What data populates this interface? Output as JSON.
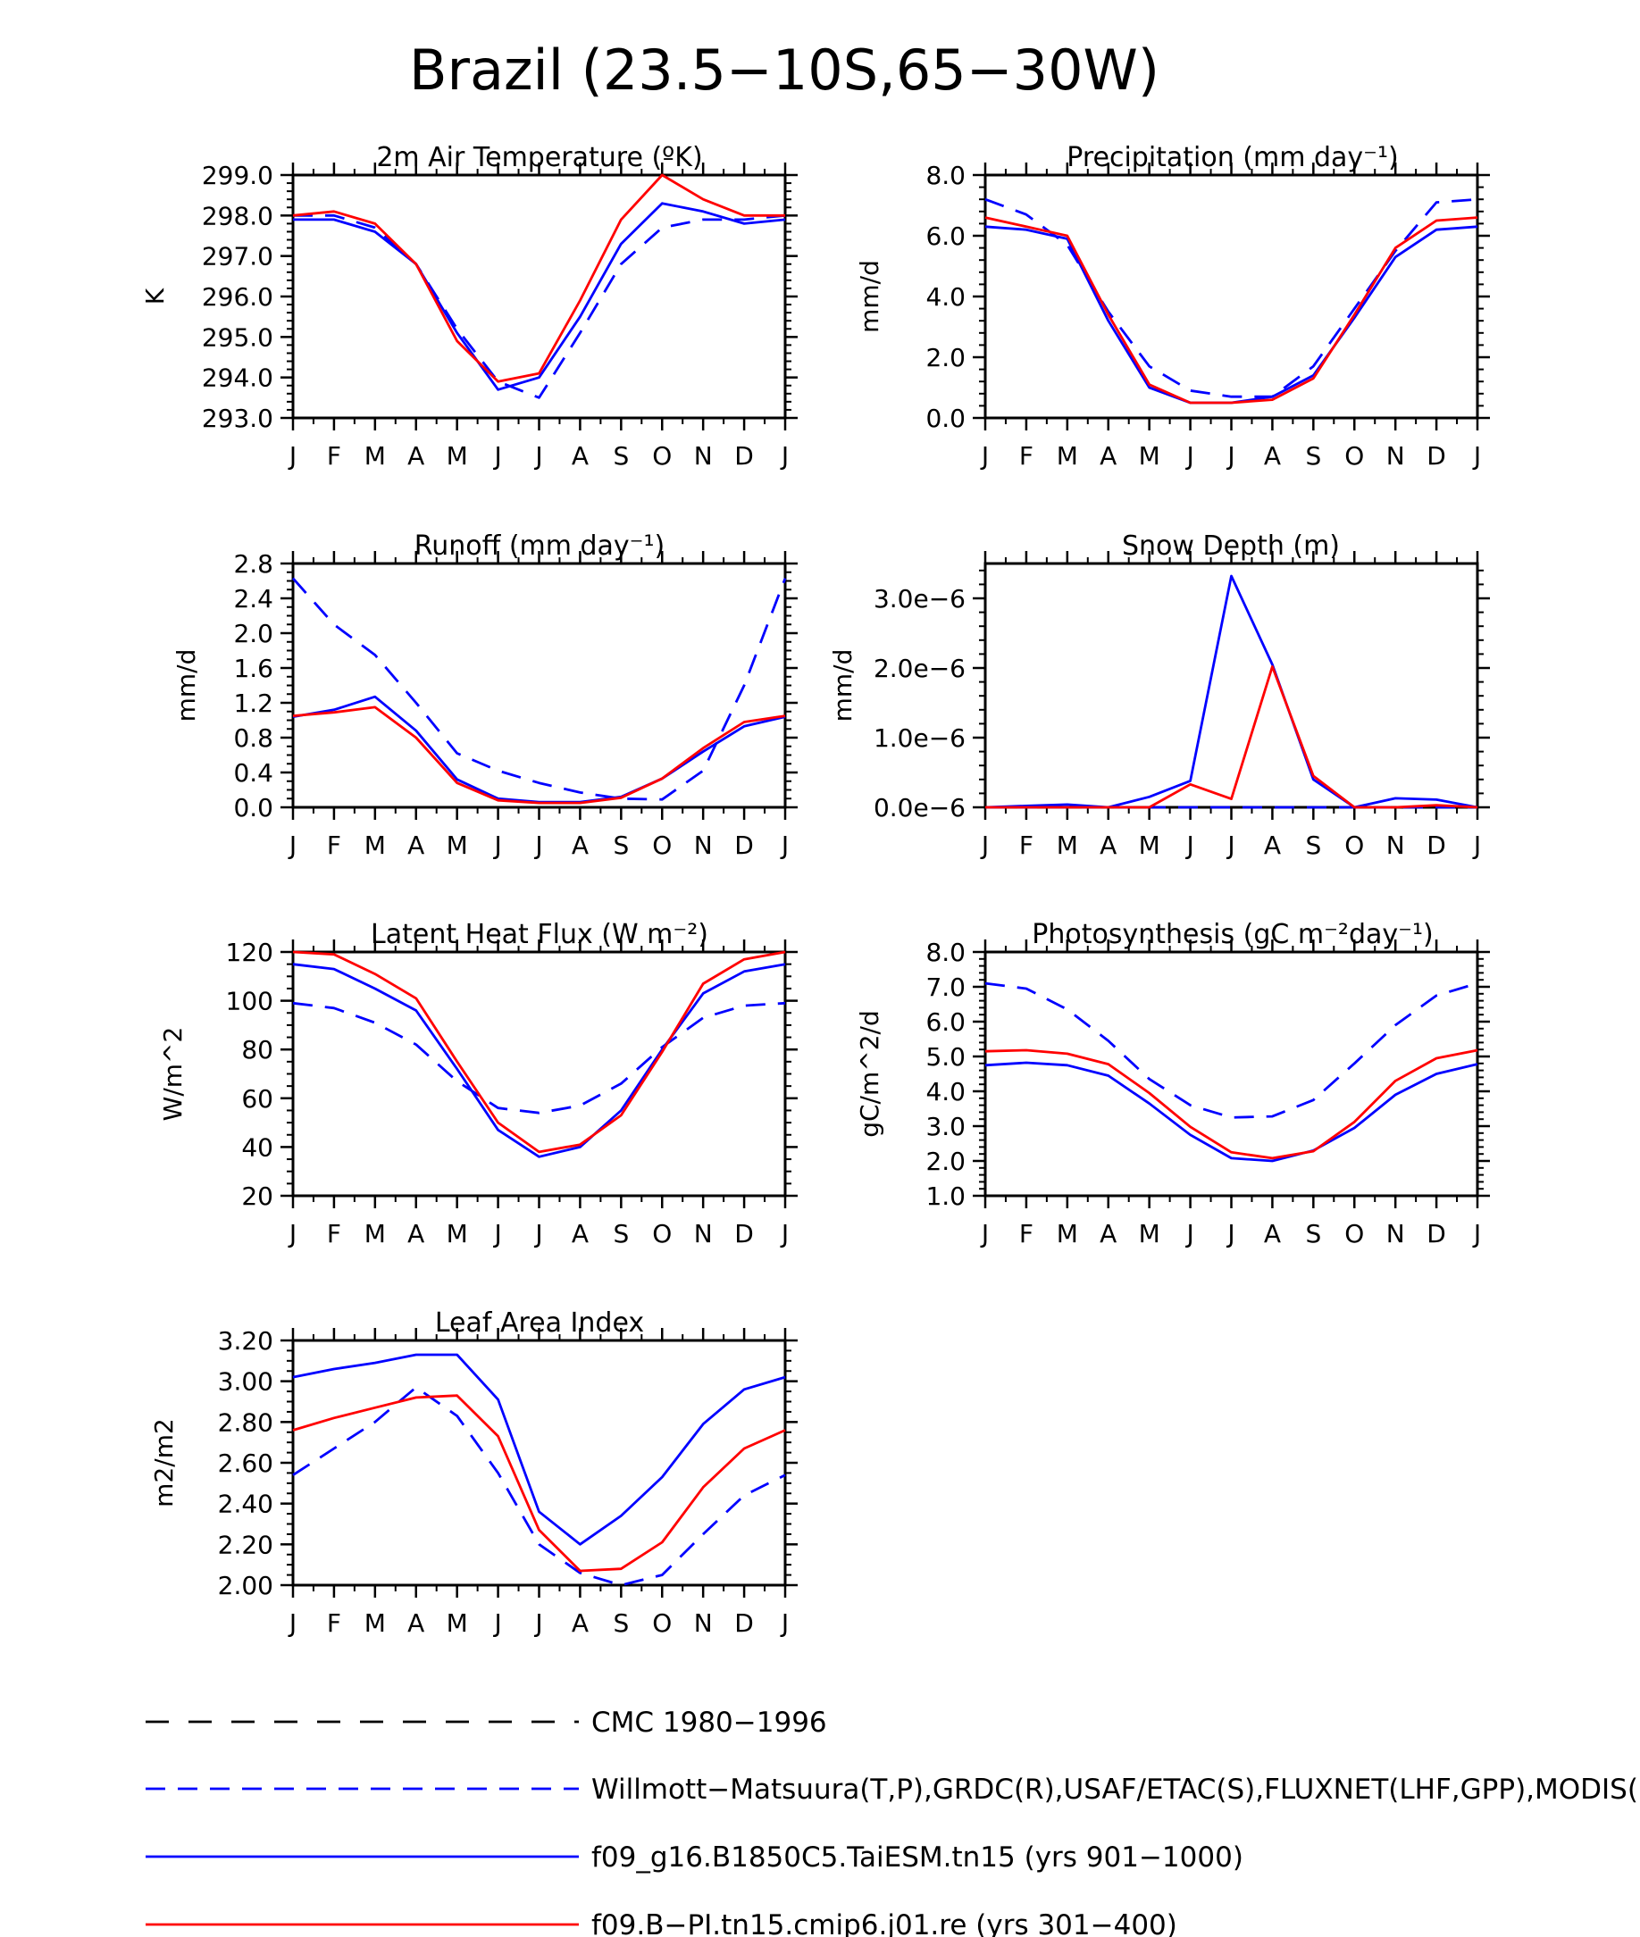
{
  "figure": {
    "title": "Brazil (23.5−10S,65−30W)"
  },
  "months": [
    "J",
    "F",
    "M",
    "A",
    "M",
    "J",
    "J",
    "A",
    "S",
    "O",
    "N",
    "D",
    "J"
  ],
  "series_styles": [
    {
      "key": "cmc",
      "color": "#000000",
      "dash": "long"
    },
    {
      "key": "obs",
      "color": "#0000ff",
      "dash": "dashed"
    },
    {
      "key": "taiesm",
      "color": "#0000ff",
      "dash": "solid"
    },
    {
      "key": "cmip6",
      "color": "#ff0000",
      "dash": "solid"
    }
  ],
  "legend": [
    {
      "key": "cmc",
      "label": "CMC 1980−1996"
    },
    {
      "key": "obs",
      "label": "Willmott−Matsuura(T,P),GRDC(R),USAF/ETAC(S),FLUXNET(LHF,GPP),MODIS(L"
    },
    {
      "key": "taiesm",
      "label": "f09_g16.B1850C5.TaiESM.tn15 (yrs 901−1000)"
    },
    {
      "key": "cmip6",
      "label": "f09.B−PI.tn15.cmip6.j01.re (yrs 301−400)"
    }
  ],
  "chart_data": [
    {
      "type": "line",
      "title": "2m Air Temperature (ºK)",
      "ylabel": "K",
      "ylim": [
        293.0,
        299.0
      ],
      "yticks": [
        293.0,
        294.0,
        295.0,
        296.0,
        297.0,
        298.0,
        299.0
      ],
      "ytick_labels": [
        "293.0",
        "294.0",
        "295.0",
        "296.0",
        "297.0",
        "298.0",
        "299.0"
      ],
      "minor_per": 5,
      "series": [
        {
          "key": "obs",
          "values": [
            298.0,
            298.0,
            297.7,
            296.8,
            295.2,
            293.9,
            293.5,
            295.1,
            296.8,
            297.7,
            297.9,
            297.9,
            298.0
          ]
        },
        {
          "key": "taiesm",
          "values": [
            297.9,
            297.9,
            297.6,
            296.8,
            295.1,
            293.7,
            294.0,
            295.5,
            297.3,
            298.3,
            298.1,
            297.8,
            297.9
          ]
        },
        {
          "key": "cmip6",
          "values": [
            298.0,
            298.1,
            297.8,
            296.8,
            294.9,
            293.9,
            294.1,
            295.9,
            297.9,
            299.0,
            298.4,
            298.0,
            298.0
          ]
        }
      ]
    },
    {
      "type": "line",
      "title": "Precipitation (mm day⁻¹)",
      "ylabel": "mm/d",
      "ylim": [
        0.0,
        8.0
      ],
      "yticks": [
        0.0,
        2.0,
        4.0,
        6.0,
        8.0
      ],
      "ytick_labels": [
        "0.0",
        "2.0",
        "4.0",
        "6.0",
        "8.0"
      ],
      "minor_per": 5,
      "series": [
        {
          "key": "obs",
          "values": [
            7.2,
            6.7,
            5.7,
            3.5,
            1.7,
            0.9,
            0.7,
            0.7,
            1.7,
            3.6,
            5.5,
            7.1,
            7.2
          ]
        },
        {
          "key": "taiesm",
          "values": [
            6.3,
            6.2,
            5.9,
            3.2,
            1.0,
            0.5,
            0.5,
            0.7,
            1.4,
            3.3,
            5.3,
            6.2,
            6.3
          ]
        },
        {
          "key": "cmip6",
          "values": [
            6.6,
            6.3,
            6.0,
            3.4,
            1.1,
            0.5,
            0.5,
            0.6,
            1.3,
            3.4,
            5.6,
            6.5,
            6.6
          ]
        }
      ]
    },
    {
      "type": "line",
      "title": "Runoff (mm day⁻¹)",
      "ylabel": "mm/d",
      "ylim": [
        0.0,
        2.8
      ],
      "yticks": [
        0.0,
        0.4,
        0.8,
        1.2,
        1.6,
        2.0,
        2.4,
        2.8
      ],
      "ytick_labels": [
        "0.0",
        "0.4",
        "0.8",
        "1.2",
        "1.6",
        "2.0",
        "2.4",
        "2.8"
      ],
      "minor_per": 4,
      "series": [
        {
          "key": "obs",
          "values": [
            2.63,
            2.1,
            1.75,
            1.2,
            0.62,
            0.42,
            0.28,
            0.17,
            0.1,
            0.09,
            0.42,
            1.4,
            2.63
          ]
        },
        {
          "key": "taiesm",
          "values": [
            1.04,
            1.12,
            1.27,
            0.88,
            0.32,
            0.1,
            0.06,
            0.06,
            0.12,
            0.33,
            0.64,
            0.93,
            1.04
          ]
        },
        {
          "key": "cmip6",
          "values": [
            1.05,
            1.09,
            1.15,
            0.8,
            0.28,
            0.08,
            0.05,
            0.05,
            0.11,
            0.33,
            0.68,
            0.98,
            1.05
          ]
        }
      ]
    },
    {
      "type": "line",
      "title": "Snow Depth (m)",
      "ylabel": "mm/d",
      "ylim": [
        0.0,
        3.5e-06
      ],
      "yticks": [
        0.0,
        1e-06,
        2e-06,
        3e-06
      ],
      "ytick_labels": [
        "0.0e−6",
        "1.0e−6",
        "2.0e−6",
        "3.0e−6"
      ],
      "minor_per": 5,
      "series": [
        {
          "key": "obs",
          "values": [
            0,
            0,
            0,
            0,
            0,
            0,
            0,
            0,
            0,
            0,
            0,
            0,
            0
          ]
        },
        {
          "key": "taiesm",
          "values": [
            0,
            2e-08,
            4e-08,
            0,
            1.5e-07,
            3.8e-07,
            3.32e-06,
            2.05e-06,
            4e-07,
            0,
            1.3e-07,
            1.1e-07,
            0
          ]
        },
        {
          "key": "cmip6",
          "values": [
            0,
            0,
            0,
            0,
            0,
            3.3e-07,
            1.2e-07,
            2.02e-06,
            4.5e-07,
            0,
            0,
            3e-08,
            0
          ]
        }
      ]
    },
    {
      "type": "line",
      "title": "Latent Heat Flux (W m⁻²)",
      "ylabel": "W/m^2",
      "ylim": [
        20,
        120
      ],
      "yticks": [
        20,
        40,
        60,
        80,
        100,
        120
      ],
      "ytick_labels": [
        "20",
        "40",
        "60",
        "80",
        "100",
        "120"
      ],
      "minor_per": 4,
      "series": [
        {
          "key": "obs",
          "values": [
            99,
            97,
            91,
            82,
            67,
            56,
            54,
            57,
            66,
            81,
            93,
            98,
            99
          ]
        },
        {
          "key": "taiesm",
          "values": [
            115,
            113,
            105,
            96,
            72,
            47,
            36,
            40,
            55,
            80,
            103,
            112,
            115
          ]
        },
        {
          "key": "cmip6",
          "values": [
            120,
            119,
            111,
            101,
            75,
            50,
            38,
            41,
            53,
            79,
            107,
            117,
            120
          ]
        }
      ]
    },
    {
      "type": "line",
      "title": "Photosynthesis (gC m⁻²day⁻¹)",
      "ylabel": "gC/m^2/d",
      "ylim": [
        1.0,
        8.0
      ],
      "yticks": [
        1.0,
        2.0,
        3.0,
        4.0,
        5.0,
        6.0,
        7.0,
        8.0
      ],
      "ytick_labels": [
        "1.0",
        "2.0",
        "3.0",
        "4.0",
        "5.0",
        "6.0",
        "7.0",
        "8.0"
      ],
      "minor_per": 5,
      "series": [
        {
          "key": "obs",
          "values": [
            7.1,
            6.95,
            6.35,
            5.45,
            4.35,
            3.6,
            3.25,
            3.28,
            3.75,
            4.8,
            5.9,
            6.75,
            7.1
          ]
        },
        {
          "key": "taiesm",
          "values": [
            4.75,
            4.82,
            4.75,
            4.45,
            3.65,
            2.75,
            2.08,
            2.0,
            2.3,
            2.95,
            3.9,
            4.5,
            4.78
          ]
        },
        {
          "key": "cmip6",
          "values": [
            5.15,
            5.18,
            5.08,
            4.78,
            3.95,
            2.98,
            2.25,
            2.08,
            2.28,
            3.12,
            4.3,
            4.95,
            5.18
          ]
        }
      ]
    },
    {
      "type": "line",
      "title": "Leaf Area Index",
      "ylabel": "m2/m2",
      "ylim": [
        2.0,
        3.2
      ],
      "yticks": [
        2.0,
        2.2,
        2.4,
        2.6,
        2.8,
        3.0,
        3.2
      ],
      "ytick_labels": [
        "2.00",
        "2.20",
        "2.40",
        "2.60",
        "2.80",
        "3.00",
        "3.20"
      ],
      "minor_per": 4,
      "series": [
        {
          "key": "obs",
          "values": [
            2.54,
            2.67,
            2.8,
            2.97,
            2.83,
            2.55,
            2.2,
            2.06,
            2.0,
            2.05,
            2.25,
            2.44,
            2.54
          ]
        },
        {
          "key": "taiesm",
          "values": [
            3.02,
            3.06,
            3.09,
            3.13,
            3.13,
            2.91,
            2.36,
            2.2,
            2.34,
            2.53,
            2.79,
            2.96,
            3.02
          ]
        },
        {
          "key": "cmip6",
          "values": [
            2.76,
            2.82,
            2.87,
            2.92,
            2.93,
            2.73,
            2.27,
            2.07,
            2.08,
            2.21,
            2.48,
            2.67,
            2.76
          ]
        }
      ]
    }
  ]
}
